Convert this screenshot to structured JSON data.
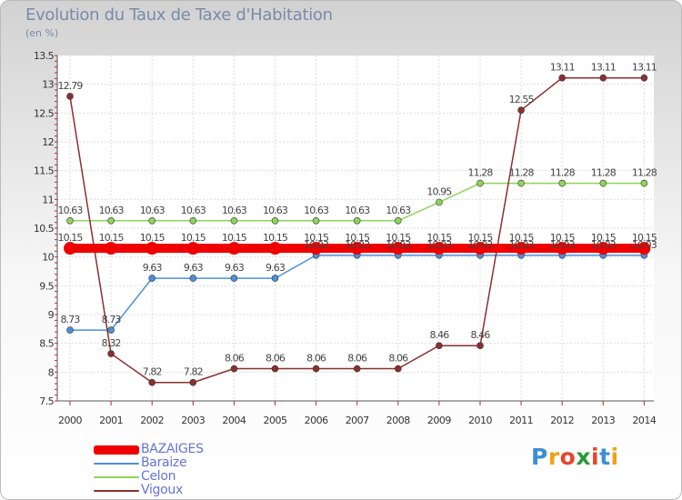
{
  "chart_data": {
    "type": "line",
    "title": "Evolution du Taux de Taxe d'Habitation",
    "unit_label": "(en %)",
    "categories": [
      "2000",
      "2001",
      "2002",
      "2003",
      "2004",
      "2005",
      "2006",
      "2007",
      "2008",
      "2009",
      "2010",
      "2011",
      "2012",
      "2013",
      "2014"
    ],
    "ylim": [
      7.5,
      13.5
    ],
    "yticks": [
      7.5,
      8,
      8.5,
      9,
      9.5,
      10,
      10.5,
      11,
      11.5,
      12,
      12.5,
      13,
      13.5
    ],
    "ytick_labels": [
      "7.5",
      "8",
      "8.5",
      "9",
      "9.5",
      "10",
      "10.5",
      "11",
      "11.5",
      "12",
      "12.5",
      "13",
      "13.5"
    ],
    "grid": true,
    "legend_position": "bottom-left",
    "series": [
      {
        "name": "BAZAIGES",
        "color": "#ee0000",
        "line_width": "thick",
        "values": [
          10.15,
          10.15,
          10.15,
          10.15,
          10.15,
          10.15,
          10.15,
          10.15,
          10.15,
          10.15,
          10.15,
          10.15,
          10.15,
          10.15,
          10.15
        ],
        "labels": [
          "10.15",
          "10.15",
          "10.15",
          "10.15",
          "10.15",
          "10.15",
          "10.15",
          "10.15",
          "10.15",
          "10.15",
          "10.15",
          "10.15",
          "10.15",
          "10.15",
          "10.15"
        ]
      },
      {
        "name": "Baraize",
        "color": "#4a90d9",
        "values": [
          8.73,
          8.73,
          9.63,
          9.63,
          9.63,
          9.63,
          10.03,
          10.03,
          10.03,
          10.03,
          10.03,
          10.03,
          10.03,
          10.03,
          10.03
        ],
        "labels": [
          "8.73",
          "8.73",
          "9.63",
          "9.63",
          "9.63",
          "9.63",
          "10.03",
          "10.03",
          "10.03",
          "10.03",
          "10.03",
          "10.03",
          "10.03",
          "10.03",
          "10.03"
        ]
      },
      {
        "name": "Celon",
        "color": "#8ed45a",
        "values": [
          10.63,
          10.63,
          10.63,
          10.63,
          10.63,
          10.63,
          10.63,
          10.63,
          10.63,
          10.95,
          11.28,
          11.28,
          11.28,
          11.28,
          11.28
        ],
        "labels": [
          "10.63",
          "10.63",
          "10.63",
          "10.63",
          "10.63",
          "10.63",
          "10.63",
          "10.63",
          "10.63",
          "10.95",
          "11.28",
          "11.28",
          "11.28",
          "11.28",
          "11.28"
        ]
      },
      {
        "name": "Vigoux",
        "color": "#8b2f2f",
        "values": [
          12.79,
          8.32,
          7.82,
          7.82,
          8.06,
          8.06,
          8.06,
          8.06,
          8.06,
          8.46,
          8.46,
          12.55,
          13.11,
          13.11,
          13.11
        ],
        "labels": [
          "12.79",
          "8.32",
          "7.82",
          "7.82",
          "8.06",
          "8.06",
          "8.06",
          "8.06",
          "8.06",
          "8.46",
          "8.46",
          "12.55",
          "13.11",
          "13.11",
          "13.11"
        ]
      }
    ]
  },
  "logo": {
    "letters": [
      "P",
      "r",
      "o",
      "x",
      "i",
      "t",
      "i"
    ],
    "colors": [
      "#3b8fd6",
      "#f0a21a",
      "#e8442c",
      "#2a9a3a",
      "#e8442c",
      "#3b8fd6",
      "#f0a21a"
    ]
  }
}
